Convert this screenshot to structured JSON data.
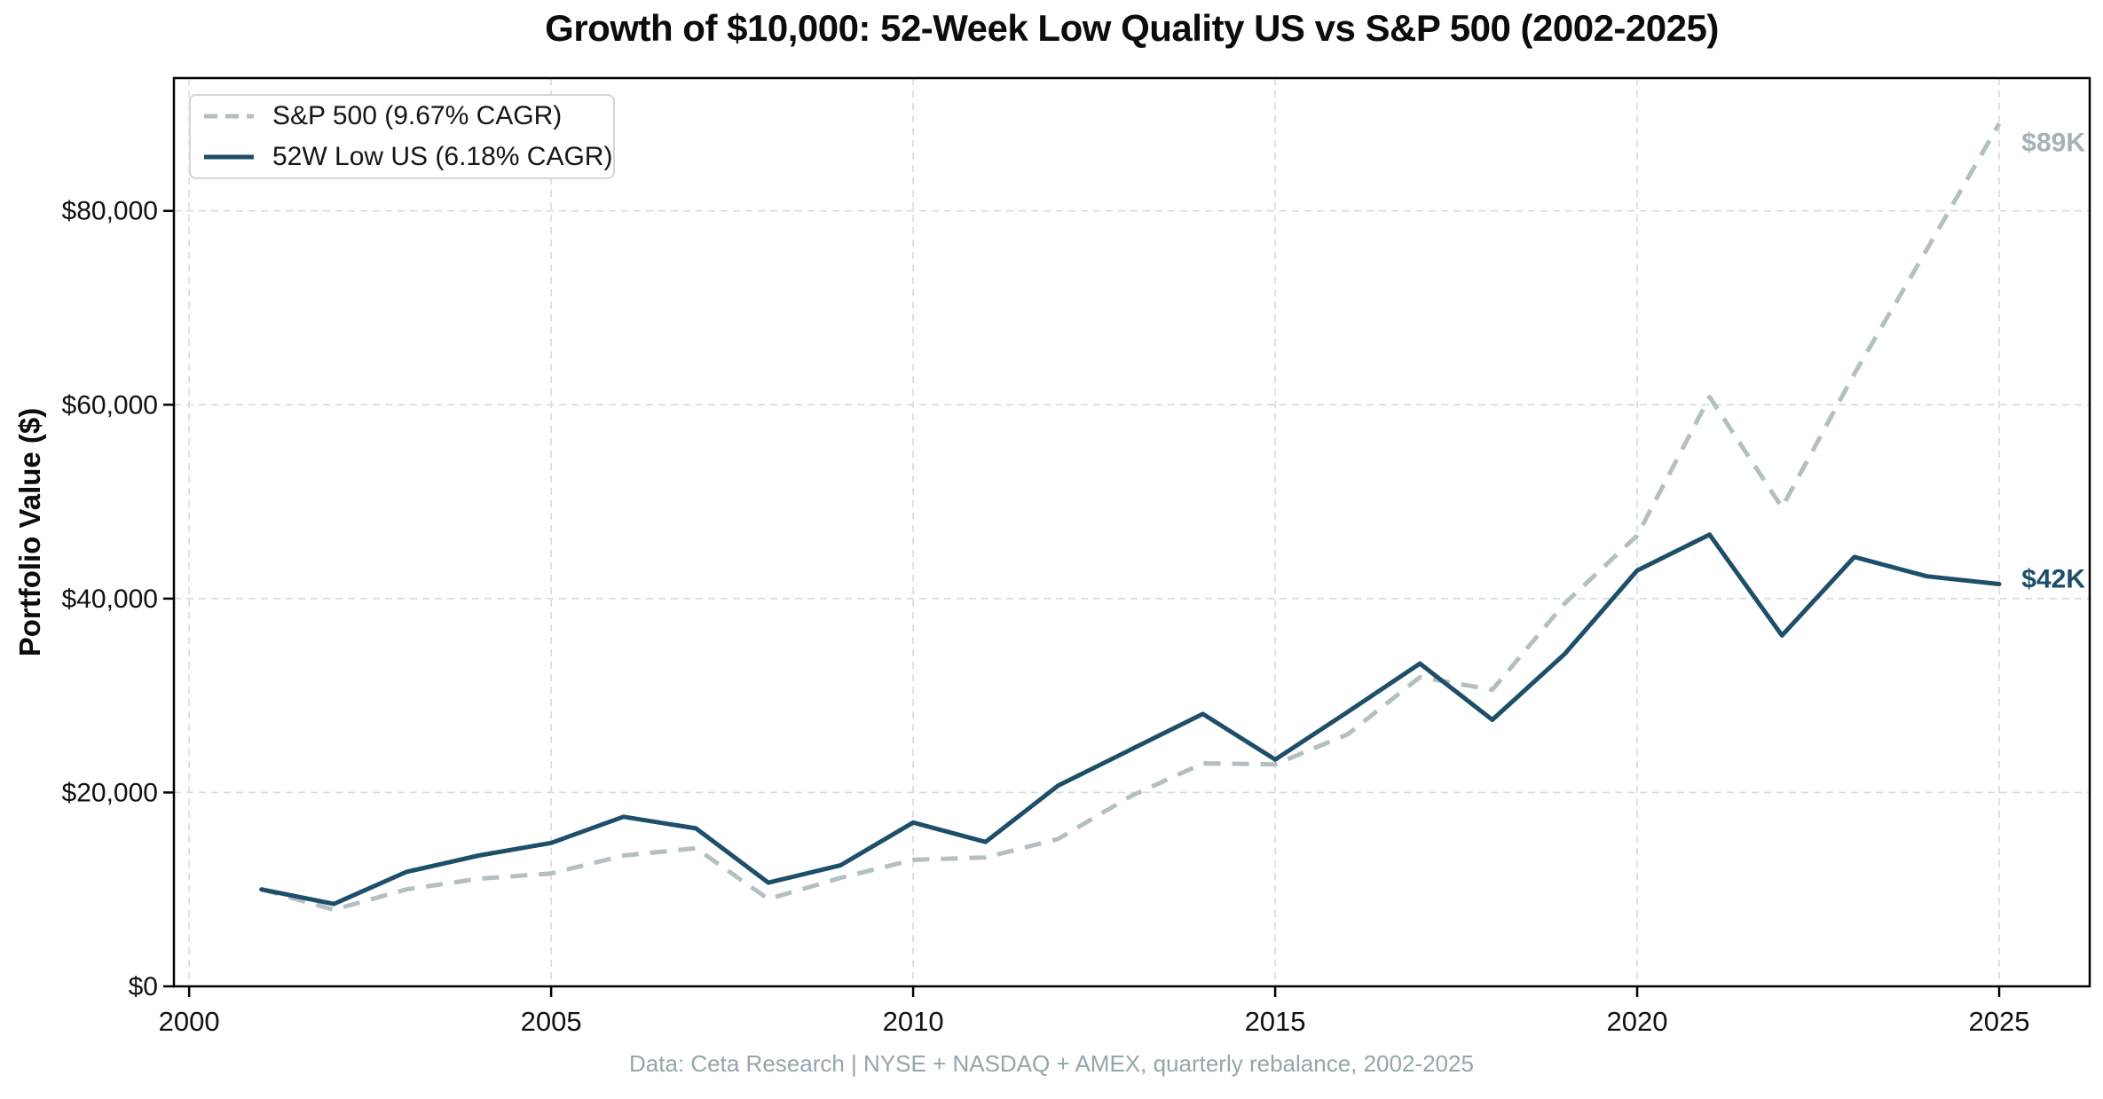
{
  "title": "Growth of $10,000: 52-Week Low Quality US vs S&P 500 (2002-2025)",
  "footer": "Data: Ceta Research | NYSE + NASDAQ + AMEX, quarterly rebalance, 2002-2025",
  "y_axis": {
    "label": "Portfolio Value ($)",
    "tick_labels": [
      "$0",
      "$20,000",
      "$40,000",
      "$60,000",
      "$80,000"
    ],
    "tick_values": [
      0,
      20000,
      40000,
      60000,
      80000
    ]
  },
  "x_axis": {
    "tick_labels": [
      "2000",
      "2005",
      "2010",
      "2015",
      "2020",
      "2025"
    ],
    "tick_values": [
      2000,
      2005,
      2010,
      2015,
      2020,
      2025
    ]
  },
  "legend": {
    "items": [
      {
        "label": "S&P 500 (9.67% CAGR)"
      },
      {
        "label": "52W Low US (6.18% CAGR)"
      }
    ]
  },
  "end_labels": [
    {
      "text": "$89K",
      "color": "#a4b2b8",
      "series": 0
    },
    {
      "text": "$42K",
      "color": "#1d4e6a",
      "series": 1
    }
  ],
  "colors": {
    "sp500_line": "#b4bfc2",
    "low52w_line": "#1d4e6a",
    "gridline": "#dadada",
    "spine": "#000000",
    "tick_text": "#111111",
    "footer_text": "#95a5ac"
  },
  "chart_data": {
    "type": "line",
    "title": "Growth of $10,000: 52-Week Low Quality US vs S&P 500 (2002-2025)",
    "xlabel": "",
    "ylabel": "Portfolio Value ($)",
    "caption": "Data: Ceta Research | NYSE + NASDAQ + AMEX, quarterly rebalance, 2002-2025",
    "grid": "dashed, both axes",
    "legend_position": "upper left",
    "xlim": [
      1999.79,
      2026.25
    ],
    "ylim": [
      0,
      93700
    ],
    "x": [
      2001,
      2002,
      2003,
      2004,
      2005,
      2006,
      2007,
      2008,
      2009,
      2010,
      2011,
      2012,
      2013,
      2014,
      2015,
      2016,
      2017,
      2018,
      2019,
      2020,
      2021,
      2022,
      2023,
      2024,
      2025
    ],
    "series": [
      {
        "name": "S&P 500 (9.67% CAGR)",
        "color": "#b4bfc2",
        "dashed": true,
        "final_label": "$89K",
        "values": [
          10000,
          7900,
          10000,
          11100,
          11650,
          13500,
          14250,
          9000,
          11200,
          13050,
          13300,
          15200,
          19600,
          23000,
          22900,
          26000,
          31900,
          30600,
          39500,
          46500,
          60800,
          49400,
          63200,
          76000,
          89000
        ]
      },
      {
        "name": "52W Low US (6.18% CAGR)",
        "color": "#1d4e6a",
        "dashed": false,
        "final_label": "$42K",
        "values": [
          10000,
          8500,
          11800,
          13500,
          14800,
          17500,
          16300,
          10700,
          12500,
          16900,
          14900,
          20700,
          24400,
          28100,
          23400,
          28300,
          33300,
          27500,
          34300,
          42900,
          46600,
          36200,
          44300,
          42300,
          41500
        ]
      }
    ]
  }
}
